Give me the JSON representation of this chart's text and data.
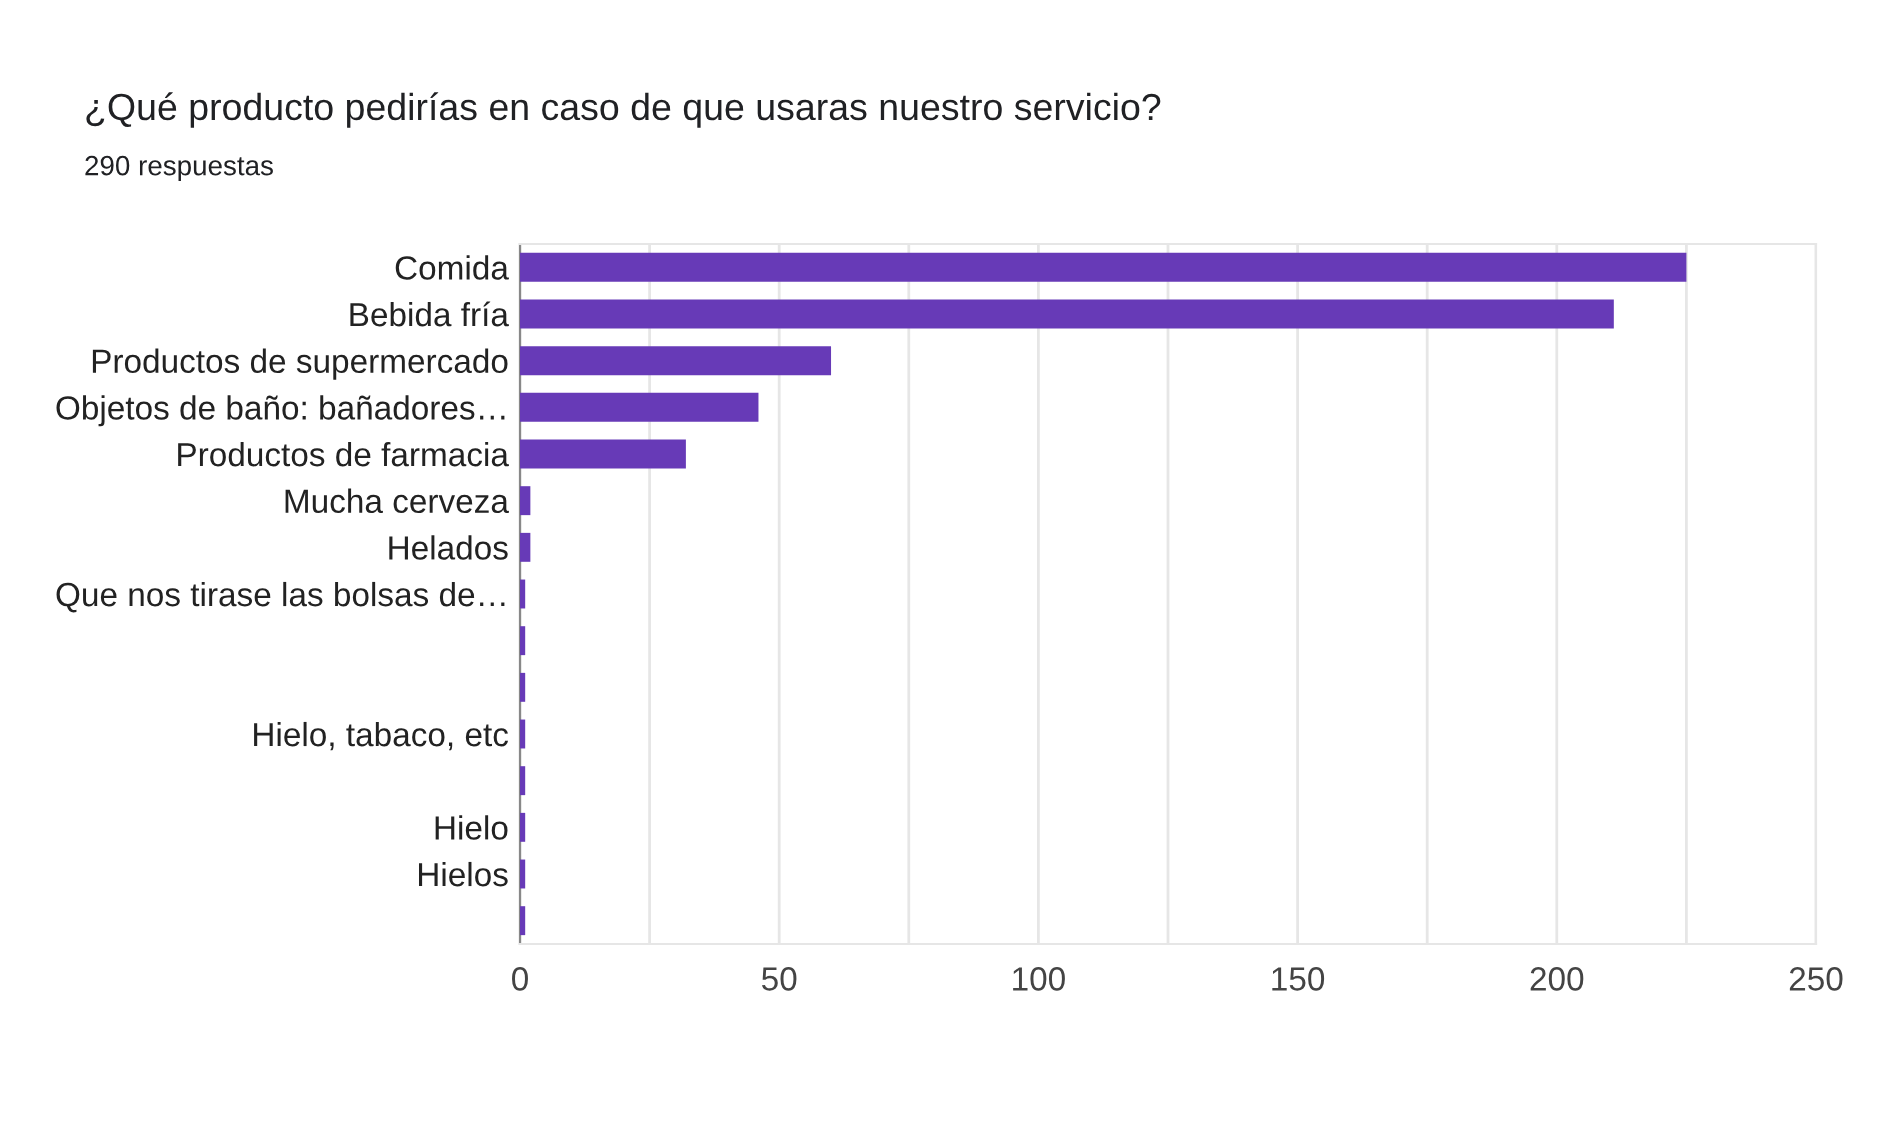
{
  "chart_data": {
    "type": "bar",
    "orientation": "horizontal",
    "title": "¿Qué producto pedirías en caso de que usaras nuestro servicio?",
    "subtitle": "290 respuestas",
    "categories": [
      "Comida",
      "Bebida fría",
      "Productos de supermercado",
      "Objetos de baño: bañadores…",
      "Productos de farmacia",
      "Mucha cerveza",
      "Helados",
      "Que nos tirase las bolsas de…",
      null,
      null,
      "Hielo, tabaco, etc",
      null,
      "Hielo",
      "Hielos",
      null
    ],
    "values": [
      225,
      211,
      60,
      46,
      32,
      2,
      2,
      1,
      1,
      1,
      1,
      1,
      1,
      1,
      1
    ],
    "color": "#673ab7",
    "xlim": [
      0,
      250
    ],
    "xticks": [
      0,
      {
        "value": 25,
        "label": null
      },
      50,
      {
        "value": 75,
        "label": null
      },
      100,
      {
        "value": 125,
        "label": null
      },
      150,
      {
        "value": 175,
        "label": null
      },
      200,
      {
        "value": 225,
        "label": null
      },
      250
    ],
    "grid": "x"
  }
}
